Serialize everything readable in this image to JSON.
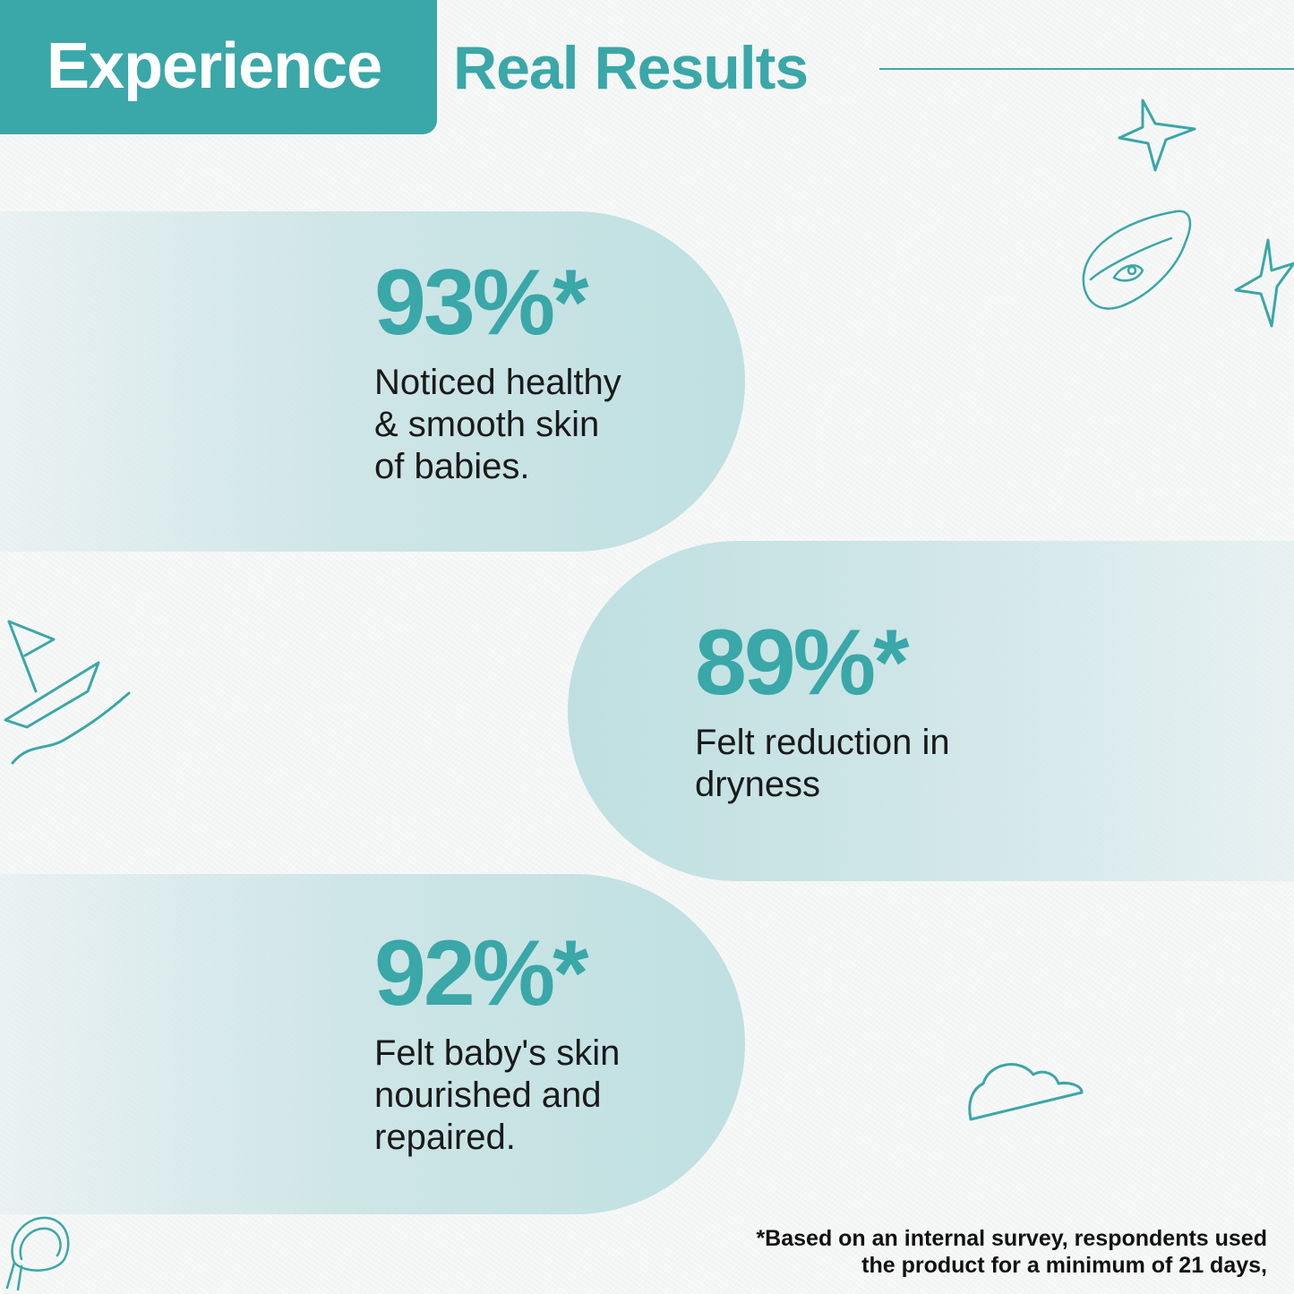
{
  "header": {
    "title_highlight": "Experience",
    "title_rest": "Real Results"
  },
  "stats": [
    {
      "value": "93%*",
      "description": "Noticed healthy\n& smooth skin\nof babies."
    },
    {
      "value": "89%*",
      "description": "Felt reduction in\ndryness"
    },
    {
      "value": "92%*",
      "description": "Felt baby's skin\nnourished and\nrepaired."
    }
  ],
  "footnote": "*Based on an internal survey, respondents used\nthe product for a minimum of 21 days,",
  "colors": {
    "accent": "#3aa7a8",
    "pill": "#bfe0e1",
    "text": "#1a1a1a",
    "background": "#f6f7f7"
  },
  "icons": [
    "starfish-icon",
    "baby-bathtub-icon",
    "sailboat-icon",
    "cloud-icon",
    "baby-bonnet-icon"
  ]
}
